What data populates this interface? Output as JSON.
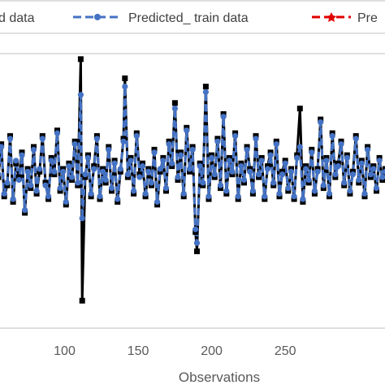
{
  "chart_data": {
    "type": "line",
    "xlabel": "Observations",
    "x_ticks": [
      100,
      150,
      200,
      250
    ],
    "xlim": [
      55,
      320
    ],
    "ylim": [
      0,
      100
    ],
    "grid": false,
    "legend_position": "top",
    "legend": [
      {
        "label": "d data",
        "color": "#000000",
        "style": "solid-square"
      },
      {
        "label": "Predicted_ train data",
        "color": "#4472C4",
        "style": "dashed-circle"
      },
      {
        "label": "Pre",
        "color": "#E00000",
        "style": "dashed-star"
      }
    ],
    "series": [
      {
        "color": "#000000",
        "values": [
          [
            55,
            55
          ],
          [
            57,
            67
          ],
          [
            59,
            48
          ],
          [
            61,
            52
          ],
          [
            63,
            70
          ],
          [
            65,
            46
          ],
          [
            67,
            60
          ],
          [
            69,
            55
          ],
          [
            71,
            64
          ],
          [
            73,
            42
          ],
          [
            75,
            58
          ],
          [
            77,
            51
          ],
          [
            79,
            66
          ],
          [
            81,
            49
          ],
          [
            83,
            57
          ],
          [
            85,
            70
          ],
          [
            87,
            53
          ],
          [
            89,
            47
          ],
          [
            91,
            62
          ],
          [
            93,
            56
          ],
          [
            95,
            72
          ],
          [
            97,
            50
          ],
          [
            99,
            58
          ],
          [
            101,
            45
          ],
          [
            103,
            60
          ],
          [
            105,
            54
          ],
          [
            107,
            68
          ],
          [
            109,
            52
          ],
          [
            111,
            98
          ],
          [
            112,
            10
          ],
          [
            114,
            55
          ],
          [
            116,
            63
          ],
          [
            118,
            48
          ],
          [
            120,
            59
          ],
          [
            122,
            70
          ],
          [
            124,
            47
          ],
          [
            126,
            58
          ],
          [
            128,
            53
          ],
          [
            130,
            66
          ],
          [
            132,
            50
          ],
          [
            134,
            61
          ],
          [
            136,
            46
          ],
          [
            138,
            57
          ],
          [
            140,
            69
          ],
          [
            141,
            91
          ],
          [
            143,
            55
          ],
          [
            145,
            62
          ],
          [
            147,
            49
          ],
          [
            149,
            71
          ],
          [
            151,
            56
          ],
          [
            153,
            60
          ],
          [
            155,
            48
          ],
          [
            157,
            58
          ],
          [
            159,
            52
          ],
          [
            161,
            65
          ],
          [
            163,
            45
          ],
          [
            165,
            57
          ],
          [
            167,
            62
          ],
          [
            169,
            50
          ],
          [
            171,
            68
          ],
          [
            173,
            59
          ],
          [
            175,
            82
          ],
          [
            177,
            54
          ],
          [
            179,
            64
          ],
          [
            181,
            48
          ],
          [
            183,
            73
          ],
          [
            185,
            57
          ],
          [
            187,
            66
          ],
          [
            189,
            35
          ],
          [
            190,
            28
          ],
          [
            192,
            60
          ],
          [
            194,
            52
          ],
          [
            196,
            88
          ],
          [
            198,
            47
          ],
          [
            200,
            63
          ],
          [
            202,
            55
          ],
          [
            204,
            69
          ],
          [
            206,
            51
          ],
          [
            208,
            78
          ],
          [
            210,
            49
          ],
          [
            212,
            62
          ],
          [
            214,
            56
          ],
          [
            216,
            71
          ],
          [
            218,
            47
          ],
          [
            220,
            60
          ],
          [
            222,
            53
          ],
          [
            224,
            66
          ],
          [
            226,
            58
          ],
          [
            228,
            49
          ],
          [
            230,
            70
          ],
          [
            232,
            55
          ],
          [
            234,
            62
          ],
          [
            236,
            47
          ],
          [
            238,
            59
          ],
          [
            240,
            64
          ],
          [
            242,
            52
          ],
          [
            244,
            68
          ],
          [
            246,
            48
          ],
          [
            248,
            57
          ],
          [
            250,
            61
          ],
          [
            252,
            50
          ],
          [
            254,
            58
          ],
          [
            256,
            47
          ],
          [
            258,
            63
          ],
          [
            260,
            80
          ],
          [
            262,
            46
          ],
          [
            264,
            59
          ],
          [
            266,
            53
          ],
          [
            268,
            65
          ],
          [
            270,
            49
          ],
          [
            272,
            58
          ],
          [
            274,
            76
          ],
          [
            276,
            51
          ],
          [
            278,
            62
          ],
          [
            280,
            48
          ],
          [
            282,
            71
          ],
          [
            284,
            55
          ],
          [
            286,
            60
          ],
          [
            288,
            68
          ],
          [
            290,
            52
          ],
          [
            292,
            63
          ],
          [
            294,
            49
          ],
          [
            296,
            57
          ],
          [
            298,
            70
          ],
          [
            300,
            53
          ],
          [
            302,
            61
          ],
          [
            304,
            48
          ],
          [
            306,
            66
          ],
          [
            308,
            55
          ],
          [
            310,
            59
          ],
          [
            312,
            50
          ],
          [
            314,
            62
          ],
          [
            316,
            54
          ],
          [
            318,
            58
          ],
          [
            320,
            52
          ]
        ]
      },
      {
        "color": "#4472C4",
        "values": [
          [
            55,
            56
          ],
          [
            57,
            66
          ],
          [
            59,
            49
          ],
          [
            61,
            53
          ],
          [
            63,
            69
          ],
          [
            65,
            47
          ],
          [
            67,
            61
          ],
          [
            69,
            54
          ],
          [
            71,
            63
          ],
          [
            73,
            43
          ],
          [
            75,
            57
          ],
          [
            77,
            52
          ],
          [
            79,
            65
          ],
          [
            81,
            50
          ],
          [
            83,
            58
          ],
          [
            85,
            69
          ],
          [
            87,
            52
          ],
          [
            89,
            48
          ],
          [
            91,
            61
          ],
          [
            93,
            57
          ],
          [
            95,
            71
          ],
          [
            97,
            51
          ],
          [
            99,
            57
          ],
          [
            101,
            46
          ],
          [
            103,
            59
          ],
          [
            105,
            55
          ],
          [
            107,
            67
          ],
          [
            109,
            53
          ],
          [
            111,
            85
          ],
          [
            112,
            40
          ],
          [
            114,
            56
          ],
          [
            116,
            62
          ],
          [
            118,
            49
          ],
          [
            120,
            58
          ],
          [
            122,
            69
          ],
          [
            124,
            48
          ],
          [
            126,
            57
          ],
          [
            128,
            54
          ],
          [
            130,
            65
          ],
          [
            132,
            51
          ],
          [
            134,
            60
          ],
          [
            136,
            47
          ],
          [
            138,
            58
          ],
          [
            140,
            68
          ],
          [
            141,
            88
          ],
          [
            143,
            56
          ],
          [
            145,
            61
          ],
          [
            147,
            50
          ],
          [
            149,
            70
          ],
          [
            151,
            55
          ],
          [
            153,
            59
          ],
          [
            155,
            49
          ],
          [
            157,
            57
          ],
          [
            159,
            53
          ],
          [
            161,
            64
          ],
          [
            163,
            46
          ],
          [
            165,
            58
          ],
          [
            167,
            61
          ],
          [
            169,
            51
          ],
          [
            171,
            67
          ],
          [
            173,
            60
          ],
          [
            175,
            80
          ],
          [
            177,
            55
          ],
          [
            179,
            63
          ],
          [
            181,
            49
          ],
          [
            183,
            72
          ],
          [
            185,
            58
          ],
          [
            187,
            65
          ],
          [
            189,
            36
          ],
          [
            190,
            31
          ],
          [
            192,
            59
          ],
          [
            194,
            53
          ],
          [
            196,
            86
          ],
          [
            198,
            48
          ],
          [
            200,
            62
          ],
          [
            202,
            56
          ],
          [
            204,
            68
          ],
          [
            206,
            52
          ],
          [
            208,
            77
          ],
          [
            210,
            50
          ],
          [
            212,
            61
          ],
          [
            214,
            57
          ],
          [
            216,
            70
          ],
          [
            218,
            48
          ],
          [
            220,
            59
          ],
          [
            222,
            54
          ],
          [
            224,
            65
          ],
          [
            226,
            57
          ],
          [
            228,
            50
          ],
          [
            230,
            69
          ],
          [
            232,
            56
          ],
          [
            234,
            61
          ],
          [
            236,
            48
          ],
          [
            238,
            58
          ],
          [
            240,
            63
          ],
          [
            242,
            53
          ],
          [
            244,
            67
          ],
          [
            246,
            49
          ],
          [
            248,
            56
          ],
          [
            250,
            60
          ],
          [
            252,
            51
          ],
          [
            254,
            57
          ],
          [
            256,
            48
          ],
          [
            258,
            62
          ],
          [
            260,
            66
          ],
          [
            262,
            47
          ],
          [
            264,
            58
          ],
          [
            266,
            54
          ],
          [
            268,
            64
          ],
          [
            270,
            50
          ],
          [
            272,
            57
          ],
          [
            274,
            75
          ],
          [
            276,
            52
          ],
          [
            278,
            61
          ],
          [
            280,
            49
          ],
          [
            282,
            70
          ],
          [
            284,
            56
          ],
          [
            286,
            59
          ],
          [
            288,
            67
          ],
          [
            290,
            53
          ],
          [
            292,
            62
          ],
          [
            294,
            50
          ],
          [
            296,
            56
          ],
          [
            298,
            69
          ],
          [
            300,
            54
          ],
          [
            302,
            60
          ],
          [
            304,
            49
          ],
          [
            306,
            65
          ],
          [
            308,
            56
          ],
          [
            310,
            58
          ],
          [
            312,
            51
          ],
          [
            314,
            61
          ],
          [
            316,
            55
          ],
          [
            318,
            57
          ],
          [
            320,
            53
          ]
        ]
      }
    ]
  }
}
